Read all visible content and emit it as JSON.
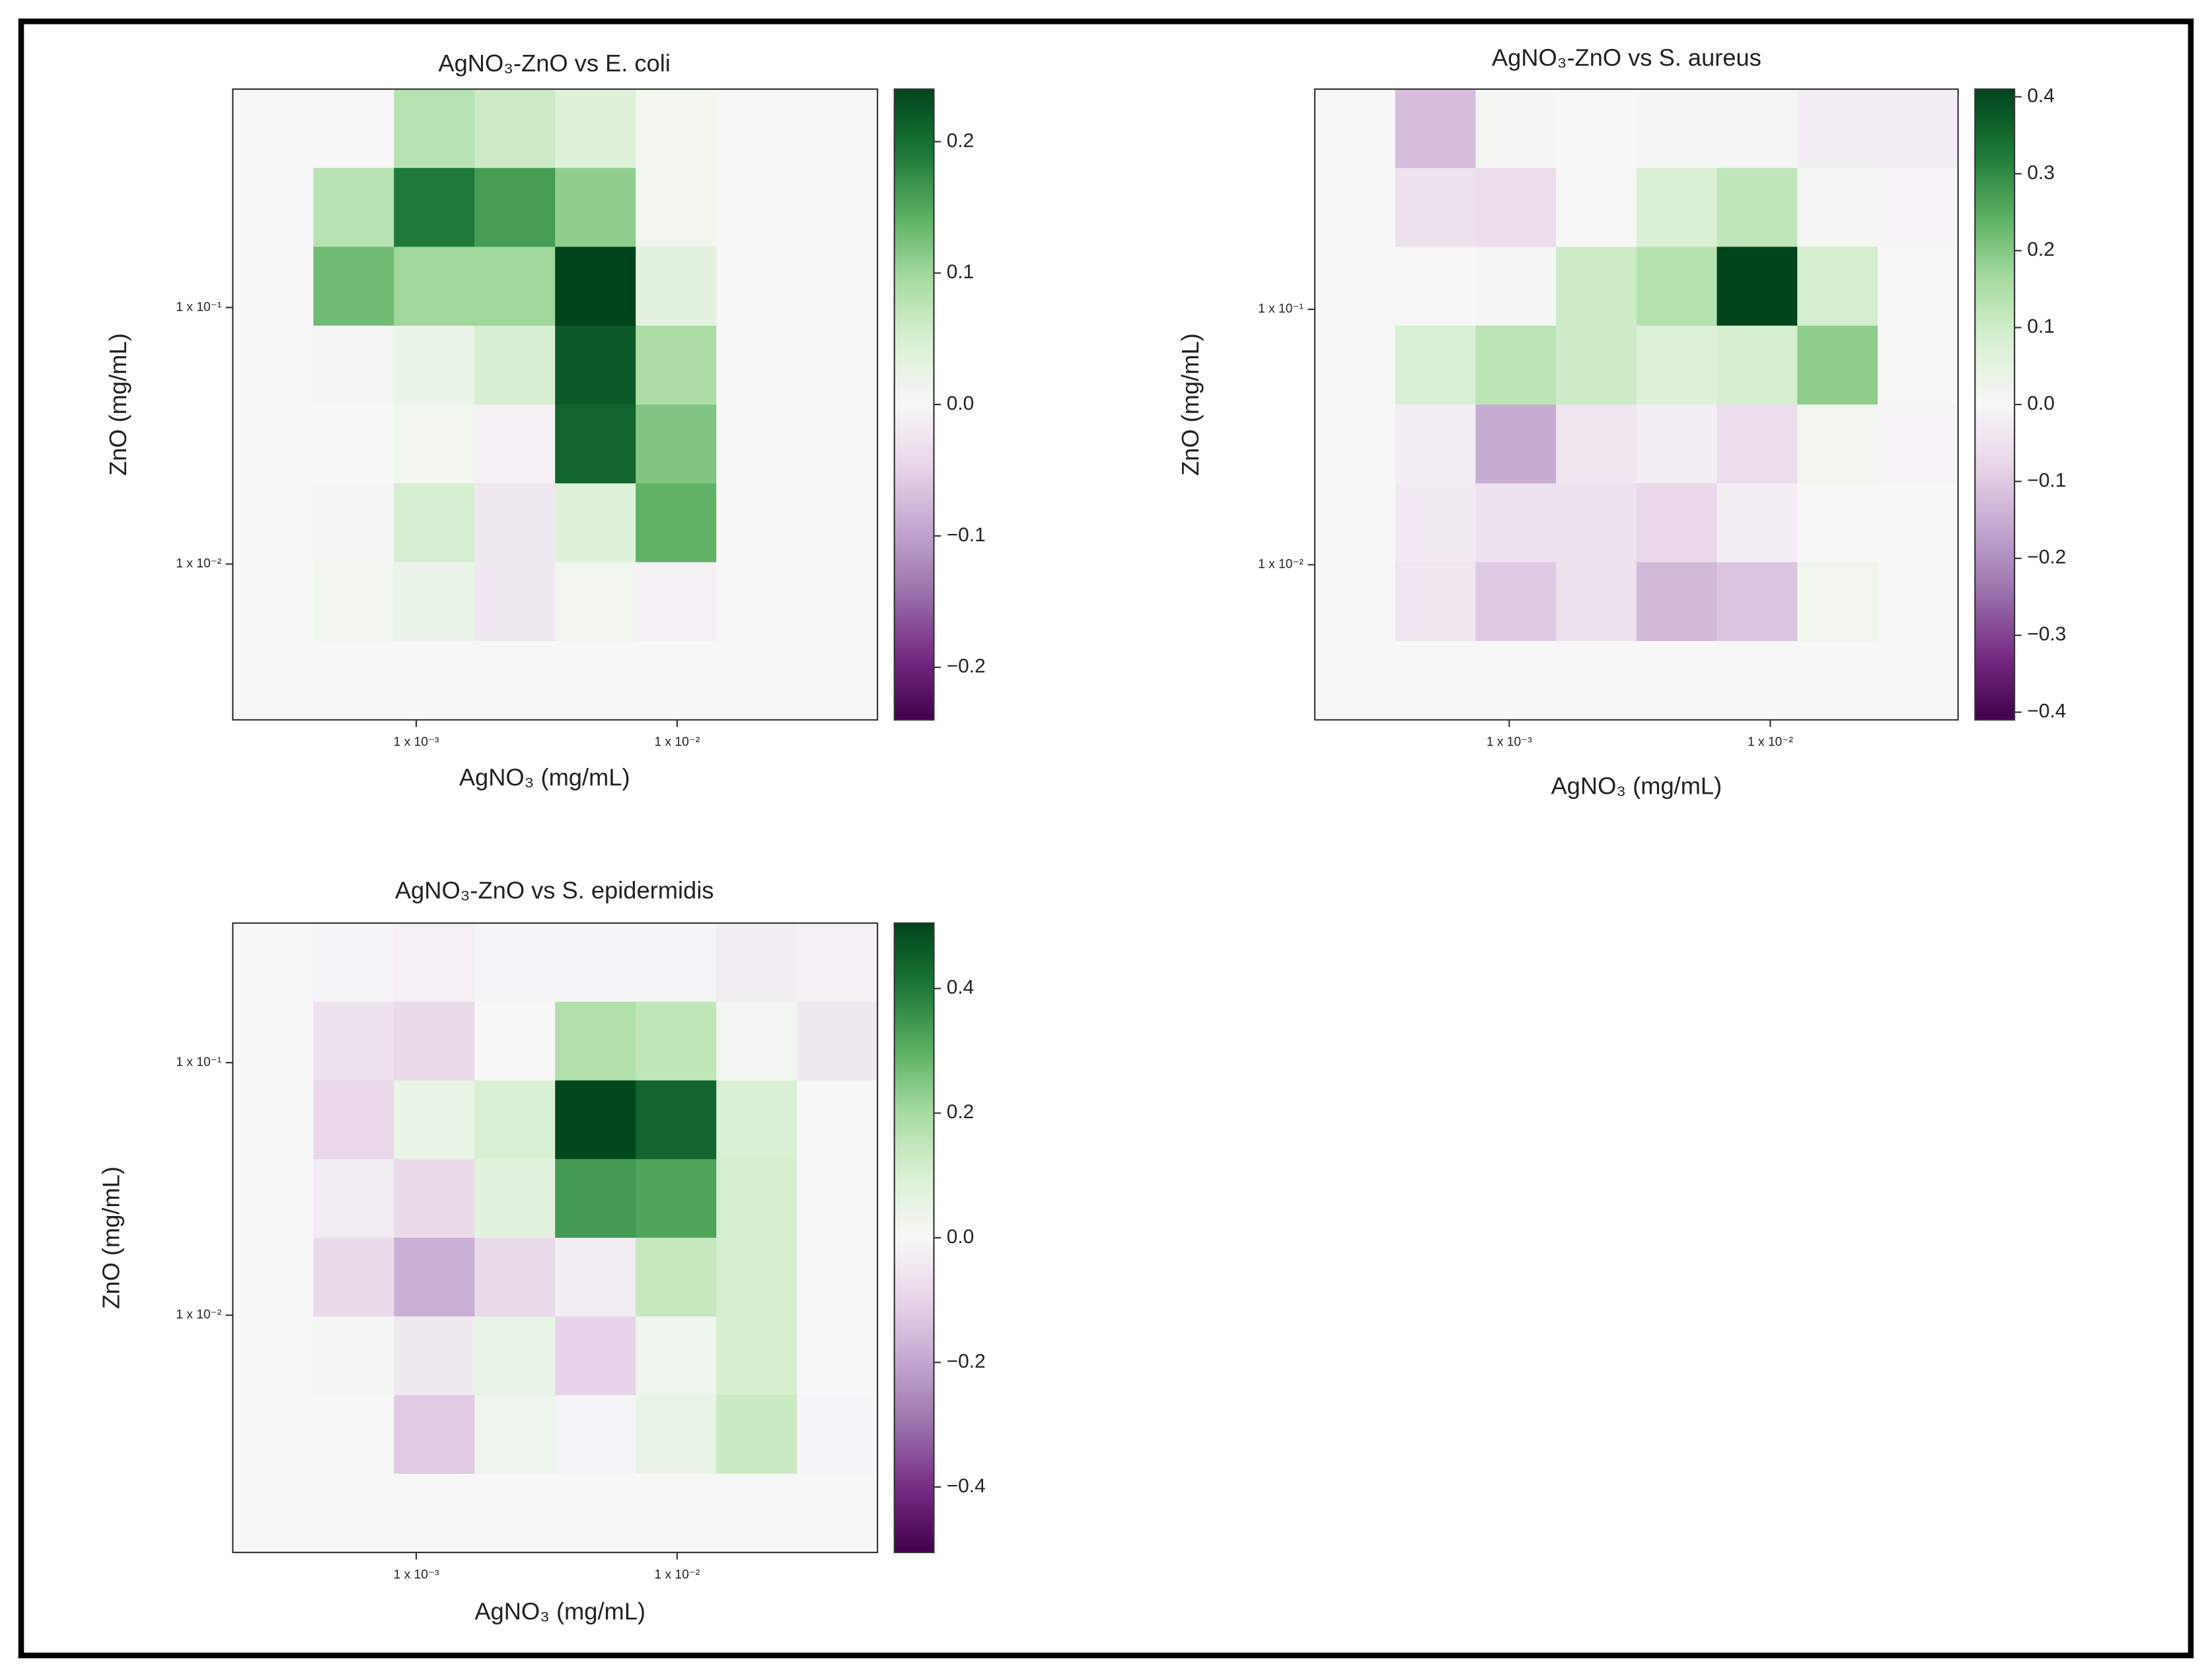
{
  "chart_data": [
    {
      "type": "heatmap",
      "title": "AgNO₃-ZnO vs E. coli",
      "xlabel": "AgNO₃ (mg/mL)",
      "ylabel": "ZnO (mg/mL)",
      "xscale": "log",
      "yscale": "log",
      "xlim": [
        0.000198,
        0.0586
      ],
      "ylim": [
        0.00247,
        0.71
      ],
      "xticks": [
        {
          "value": 0.001,
          "label": "1 x 10⁻³"
        },
        {
          "value": 0.01,
          "label": "1 x 10⁻²"
        }
      ],
      "yticks": [
        {
          "value": 0.01,
          "label": "1 x 10⁻²"
        },
        {
          "value": 0.1,
          "label": "1 x 10⁻¹"
        }
      ],
      "colormap": "PRGn",
      "zlim": [
        -0.24,
        0.24
      ],
      "zticks": [
        {
          "value": -0.2,
          "label": "−0.2"
        },
        {
          "value": -0.1,
          "label": "−0.1"
        },
        {
          "value": 0,
          "label": "0.0"
        },
        0.1,
        0.2
      ],
      "z": [
        [
          0,
          0,
          0.08,
          0.06,
          0.04,
          0.01,
          0,
          0
        ],
        [
          0,
          0.08,
          0.19,
          0.16,
          0.11,
          0.01,
          0,
          0
        ],
        [
          0,
          0.13,
          0.1,
          0.1,
          0.24,
          0.03,
          0,
          0
        ],
        [
          0,
          0.005,
          0.02,
          0.05,
          0.22,
          0.09,
          0,
          0
        ],
        [
          0,
          0,
          0.01,
          -0.01,
          0.21,
          0.12,
          0,
          0
        ],
        [
          0,
          0.005,
          0.05,
          -0.02,
          0.04,
          0.14,
          0,
          0
        ],
        [
          0,
          0.01,
          0.02,
          -0.02,
          0.01,
          -0.01,
          0,
          0
        ],
        [
          0,
          0,
          0,
          0,
          0,
          0,
          0,
          0
        ]
      ]
    },
    {
      "type": "heatmap",
      "title": "AgNO₃-ZnO vs S. aureus",
      "xlabel": "AgNO₃ (mg/mL)",
      "ylabel": "ZnO (mg/mL)",
      "xscale": "log",
      "yscale": "log",
      "xlim": [
        0.00018,
        0.0524
      ],
      "ylim": [
        0.00247,
        0.728
      ],
      "xticks": [
        {
          "value": 0.001,
          "label": "1 x 10⁻³"
        },
        {
          "value": 0.01,
          "label": "1 x 10⁻²"
        }
      ],
      "yticks": [
        {
          "value": 0.01,
          "label": "1 x 10⁻²"
        },
        {
          "value": 0.1,
          "label": "1 x 10⁻¹"
        }
      ],
      "colormap": "PRGn",
      "zlim": [
        -0.41,
        0.41
      ],
      "zticks": [
        {
          "value": -0.4,
          "label": "−0.4"
        },
        {
          "value": -0.3,
          "label": "−0.3"
        },
        {
          "value": -0.2,
          "label": "−0.2"
        },
        {
          "value": -0.1,
          "label": "−0.1"
        },
        {
          "value": 0,
          "label": "0.0"
        },
        0.1,
        0.2,
        0.3,
        0.4
      ],
      "z": [
        [
          0,
          -0.12,
          0.01,
          0,
          0.01,
          0.01,
          -0.02,
          -0.02
        ],
        [
          0,
          -0.05,
          -0.06,
          0,
          0.08,
          0.12,
          0.01,
          -0.01
        ],
        [
          0,
          0,
          0.01,
          0.1,
          0.14,
          0.41,
          0.09,
          0
        ],
        [
          0,
          0.08,
          0.13,
          0.1,
          0.07,
          0.09,
          0.19,
          0
        ],
        [
          0,
          -0.02,
          -0.15,
          -0.04,
          -0.02,
          -0.06,
          0.02,
          -0.01
        ],
        [
          0,
          -0.03,
          -0.05,
          -0.05,
          -0.07,
          -0.02,
          0,
          0
        ],
        [
          0,
          -0.04,
          -0.1,
          -0.05,
          -0.13,
          -0.11,
          0.02,
          0
        ],
        [
          0,
          0,
          0,
          0,
          0,
          0,
          0,
          0
        ]
      ]
    },
    {
      "type": "heatmap",
      "title": "AgNO₃-ZnO vs S. epidermidis",
      "xlabel": "AgNO₃ (mg/mL)",
      "ylabel": "ZnO (mg/mL)",
      "xscale": "log",
      "yscale": "log",
      "xlim": [
        0.000198,
        0.0586
      ],
      "ylim": [
        0.00115,
        0.357
      ],
      "xticks": [
        {
          "value": 0.001,
          "label": "1 x 10⁻³"
        },
        {
          "value": 0.01,
          "label": "1 x 10⁻²"
        }
      ],
      "yticks": [
        {
          "value": 0.01,
          "label": "1 x 10⁻²"
        },
        {
          "value": 0.1,
          "label": "1 x 10⁻¹"
        }
      ],
      "colormap": "PRGn",
      "zlim": [
        -0.505,
        0.505
      ],
      "zticks": [
        {
          "value": -0.4,
          "label": "−0.4"
        },
        {
          "value": -0.2,
          "label": "−0.2"
        },
        {
          "value": 0,
          "label": "0.0"
        },
        0.2,
        0.4
      ],
      "z": [
        [
          0,
          -0.01,
          -0.02,
          -0.01,
          -0.01,
          -0.01,
          -0.03,
          -0.02
        ],
        [
          0,
          -0.06,
          -0.08,
          0,
          0.18,
          0.15,
          0.02,
          -0.04
        ],
        [
          0,
          -0.09,
          0.05,
          0.1,
          0.5,
          0.44,
          0.1,
          0
        ],
        [
          0,
          -0.03,
          -0.08,
          0.07,
          0.34,
          0.32,
          0.11,
          0
        ],
        [
          0,
          -0.08,
          -0.18,
          -0.08,
          -0.03,
          0.14,
          0.11,
          0
        ],
        [
          0,
          0.01,
          -0.04,
          0.05,
          -0.1,
          0.03,
          0.11,
          0
        ],
        [
          0,
          0,
          -0.12,
          0.03,
          -0.01,
          0.05,
          0.13,
          -0.01
        ],
        [
          0,
          0,
          0,
          0,
          0,
          0,
          0,
          0
        ]
      ]
    }
  ]
}
